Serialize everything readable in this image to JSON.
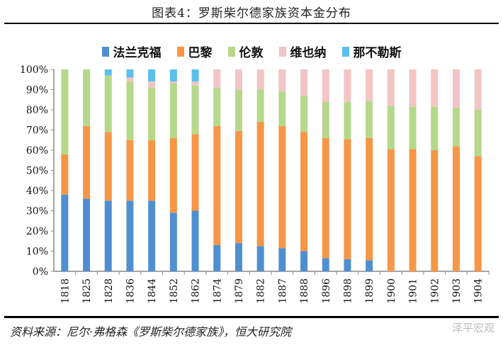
{
  "title": "图表4：罗斯柴尔德家族资本金分布",
  "footer": "资料来源：尼尔·弗格森《罗斯柴尔德家族》，恒大研究院",
  "watermark": "泽平宏观",
  "chart_data": {
    "type": "bar",
    "stacked": true,
    "percent": true,
    "title": "图表4：罗斯柴尔德家族资本金分布",
    "categories": [
      "1818",
      "1825",
      "1828",
      "1836",
      "1844",
      "1852",
      "1862",
      "1874",
      "1879",
      "1882",
      "1887",
      "1888",
      "1896",
      "1898",
      "1899",
      "1900",
      "1901",
      "1902",
      "1903",
      "1904"
    ],
    "series": [
      {
        "name": "法兰克福",
        "color": "#4f8fd0",
        "values": [
          38,
          36,
          35,
          35,
          35,
          29,
          30,
          13,
          14,
          12.5,
          11.5,
          10,
          6.5,
          6,
          5.5,
          0,
          0,
          0,
          0,
          0
        ]
      },
      {
        "name": "巴黎",
        "color": "#f79646",
        "values": [
          20,
          36,
          34,
          30,
          30,
          37,
          38,
          59,
          55.5,
          61.5,
          60.5,
          59,
          59.5,
          59.5,
          60.5,
          60.5,
          60.5,
          60,
          62,
          57
        ]
      },
      {
        "name": "伦敦",
        "color": "#b5d88a",
        "values": [
          42,
          28,
          28,
          29,
          26,
          27,
          24,
          19,
          20.5,
          16,
          17,
          18,
          18,
          18.5,
          18.5,
          21.5,
          21,
          21.5,
          19,
          23
        ]
      },
      {
        "name": "维也纳",
        "color": "#f2c4c4",
        "values": [
          0,
          0,
          0,
          2,
          3,
          1,
          2,
          9,
          10,
          10,
          11,
          13,
          16,
          16,
          15.5,
          18,
          18.5,
          18.5,
          19,
          20
        ]
      },
      {
        "name": "那不勒斯",
        "color": "#5bc0eb",
        "values": [
          0,
          0,
          3,
          4,
          6,
          6,
          6,
          0,
          0,
          0,
          0,
          0,
          0,
          0,
          0,
          0,
          0,
          0,
          0,
          0
        ]
      }
    ],
    "yticks": [
      "0%",
      "10%",
      "20%",
      "30%",
      "40%",
      "50%",
      "60%",
      "70%",
      "80%",
      "90%",
      "100%"
    ],
    "ylim": [
      0,
      100
    ],
    "grid": false,
    "legend": "top"
  }
}
